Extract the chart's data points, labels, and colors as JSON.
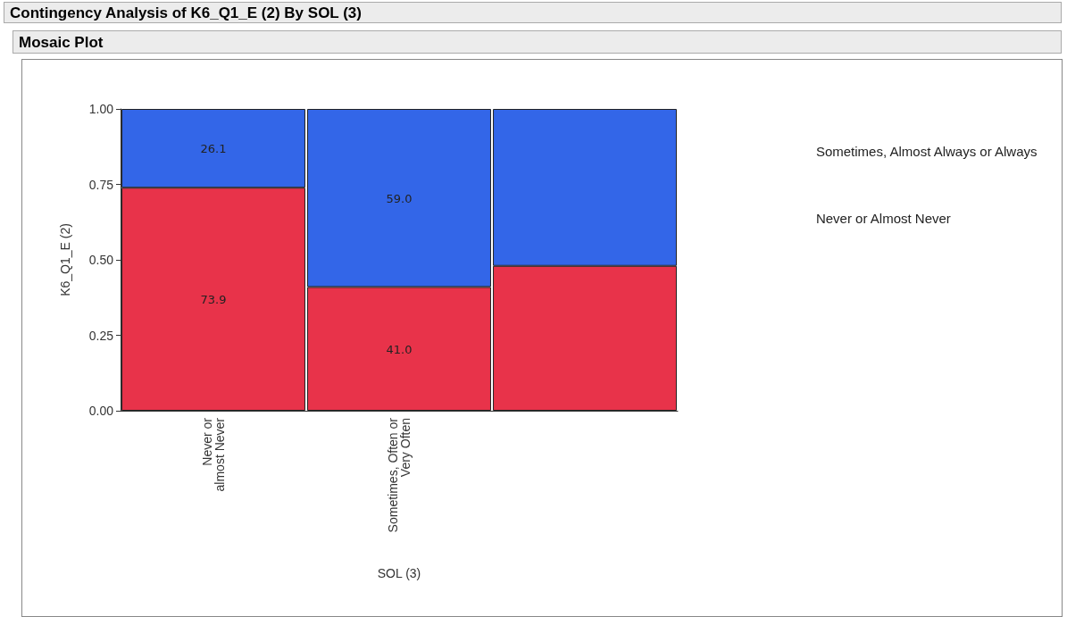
{
  "chart_data": {
    "type": "bar",
    "title": "Contingency Analysis of K6_Q1_E (2) By SOL (3)",
    "subtitle": "Mosaic Plot",
    "xlabel": "SOL (3)",
    "ylabel": "K6_Q1_E (2)",
    "categories": [
      "Never or almost Never",
      "Sometimes, Often or Very Often",
      null
    ],
    "stacked": true,
    "series": [
      {
        "name": "Never or Almost Never",
        "color": "#e8334a",
        "values": [
          0.739,
          0.41,
          0.48
        ]
      },
      {
        "name": "Sometimes, Almost Always or Always",
        "color": "#3366e8",
        "values": [
          0.261,
          0.59,
          0.52
        ]
      }
    ],
    "annotations": [
      "73.9",
      "26.1",
      "41.0",
      "59.0"
    ],
    "ylim": [
      0,
      1
    ],
    "yticks": [
      {
        "value": 0,
        "label": "0.00"
      },
      {
        "value": 0.25,
        "label": "0.25"
      },
      {
        "value": 0.5,
        "label": "0.50"
      },
      {
        "value": 0.75,
        "label": "0.75"
      },
      {
        "value": 1,
        "label": "1.00"
      }
    ],
    "grid": false,
    "legend": "right"
  }
}
